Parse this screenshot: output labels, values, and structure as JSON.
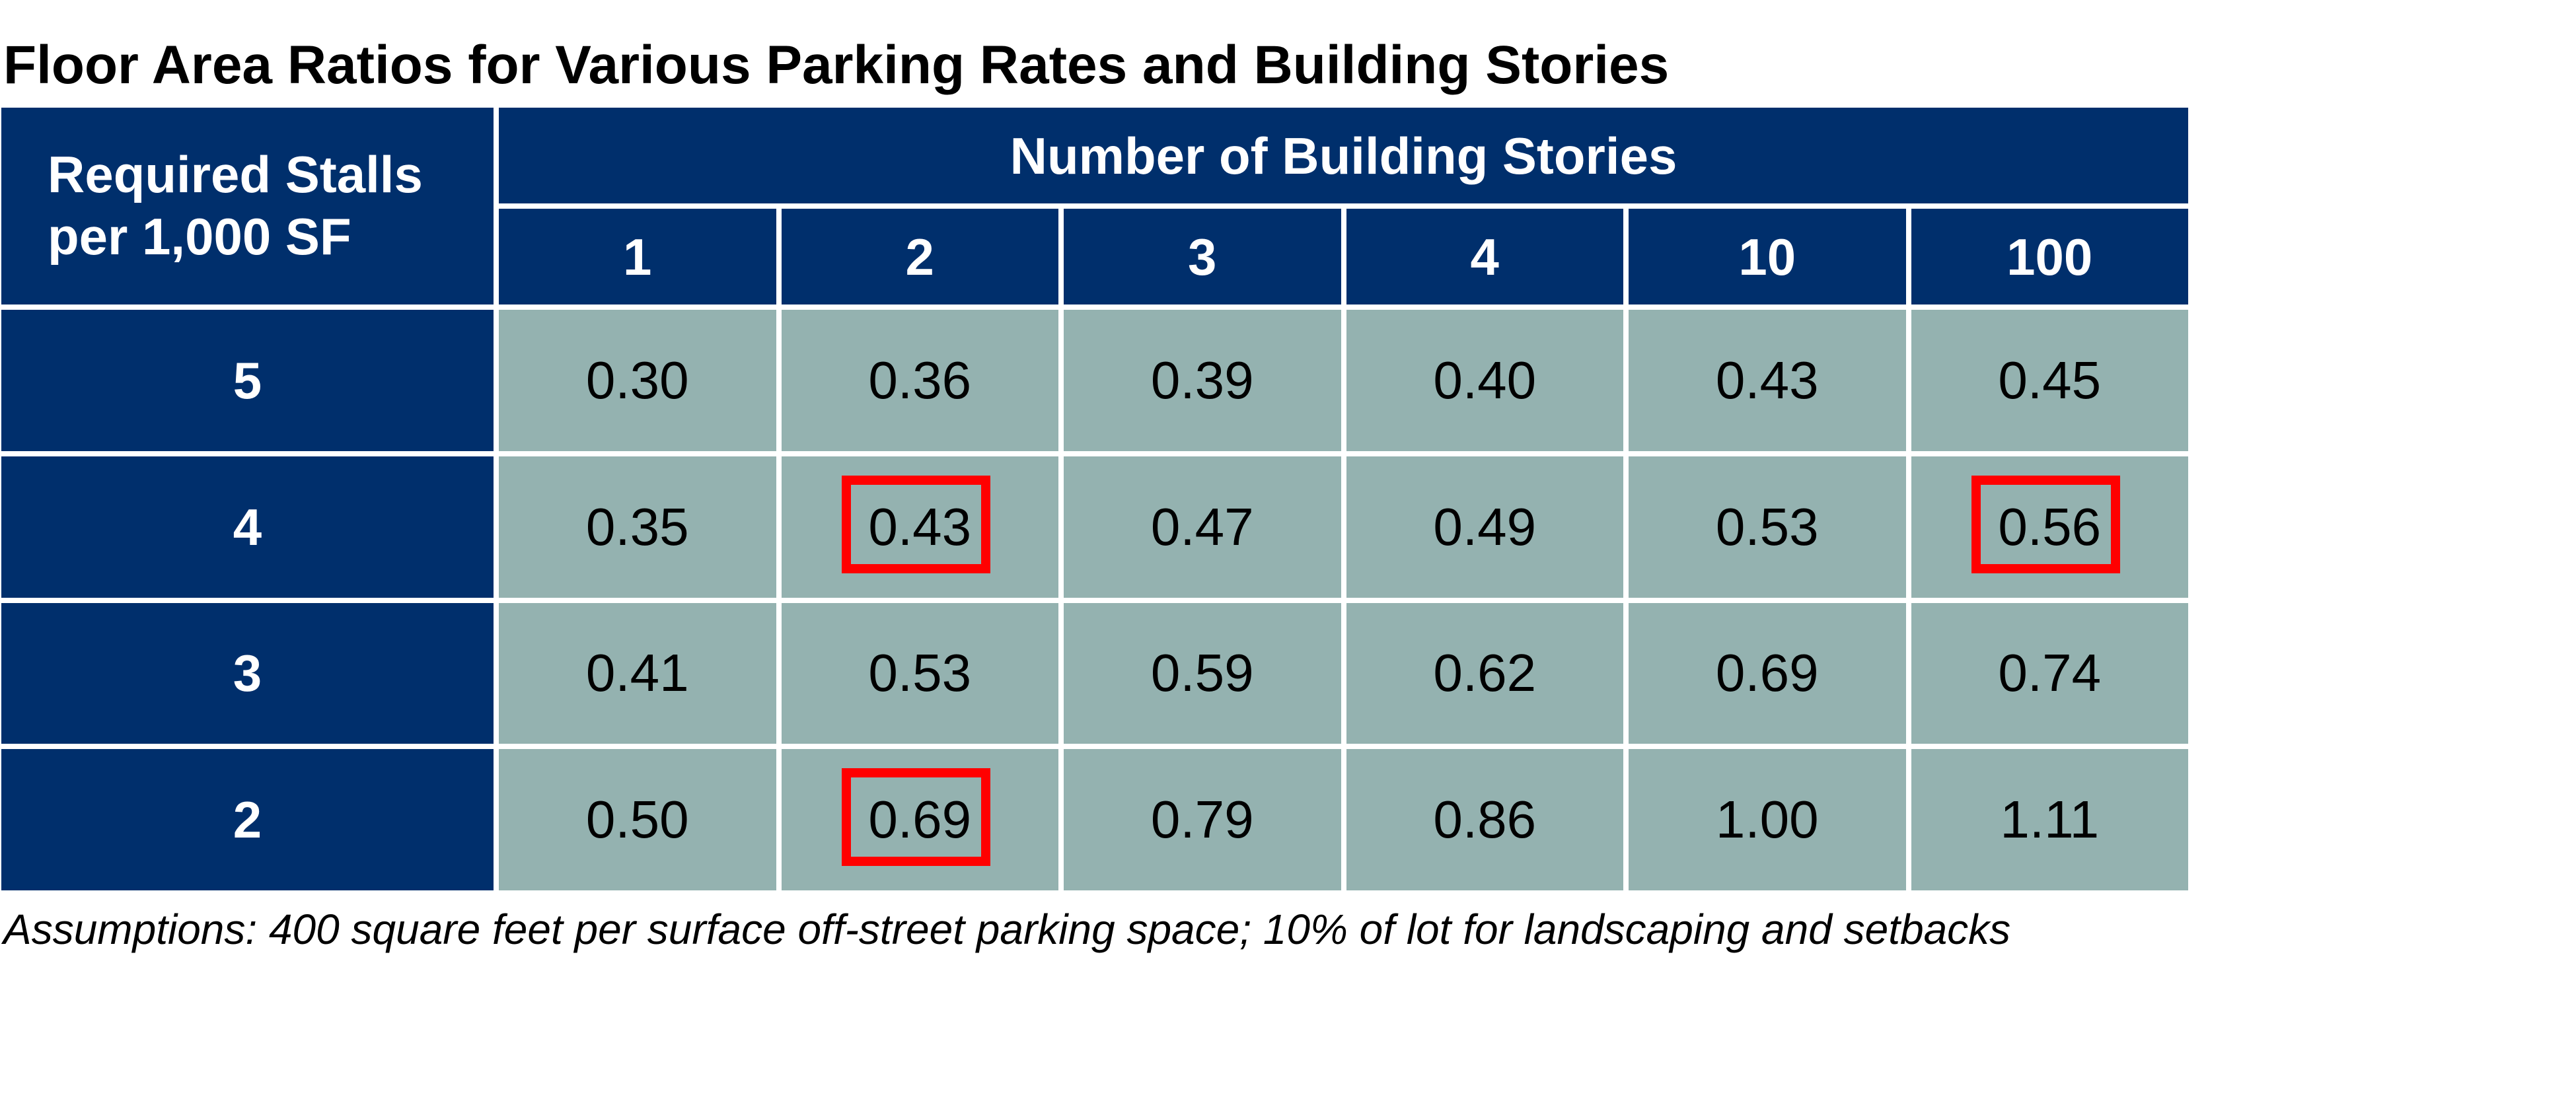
{
  "title": "Floor Area Ratios for Various Parking Rates and Building Stories",
  "footnote": "Assumptions: 400 square feet per surface off-street parking space; 10% of lot for landscaping and setbacks",
  "colors": {
    "header_bg": "#002f6c",
    "header_text": "#ffffff",
    "data_bg": "#94b2b0",
    "highlight": "#ff0000"
  },
  "chart_data": {
    "type": "table",
    "title": "Floor Area Ratios for Various Parking Rates and Building Stories",
    "row_header_label": "Required Stalls\nper 1,000 SF",
    "column_group_label": "Number of Building Stories",
    "columns": [
      "1",
      "2",
      "3",
      "4",
      "10",
      "100"
    ],
    "rows": [
      {
        "label": "5",
        "values": [
          "0.30",
          "0.36",
          "0.39",
          "0.40",
          "0.43",
          "0.45"
        ]
      },
      {
        "label": "4",
        "values": [
          "0.35",
          "0.43",
          "0.47",
          "0.49",
          "0.53",
          "0.56"
        ]
      },
      {
        "label": "3",
        "values": [
          "0.41",
          "0.53",
          "0.59",
          "0.62",
          "0.69",
          "0.74"
        ]
      },
      {
        "label": "2",
        "values": [
          "0.50",
          "0.69",
          "0.79",
          "0.86",
          "1.00",
          "1.11"
        ]
      }
    ],
    "highlighted_cells": [
      {
        "row": "4",
        "column": "2",
        "value": "0.43"
      },
      {
        "row": "4",
        "column": "100",
        "value": "0.56"
      },
      {
        "row": "2",
        "column": "2",
        "value": "0.69"
      }
    ],
    "footnote": "Assumptions: 400 square feet per surface off-street parking space; 10% of lot for landscaping and setbacks"
  }
}
